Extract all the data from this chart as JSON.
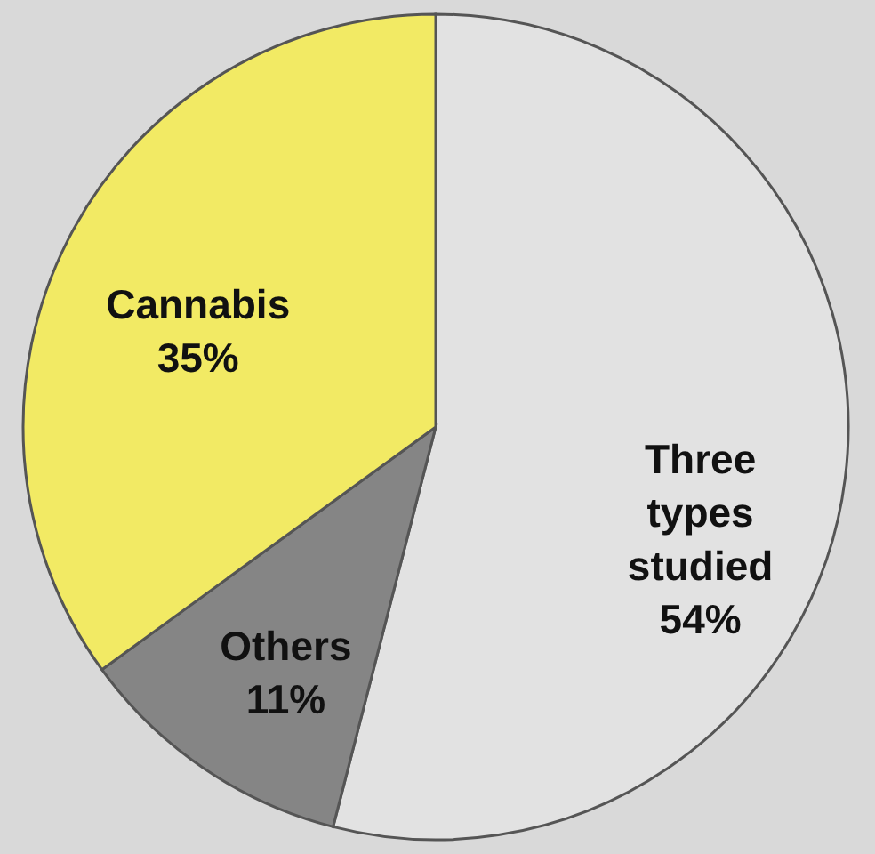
{
  "chart_data": {
    "type": "pie",
    "categories": [
      "Three types studied",
      "Others",
      "Cannabis"
    ],
    "values": [
      54,
      11,
      35
    ],
    "value_labels": [
      "54%",
      "11%",
      "35%"
    ],
    "colors": [
      "#e2e2e2",
      "#858585",
      "#f2ea64"
    ],
    "legend": false
  }
}
